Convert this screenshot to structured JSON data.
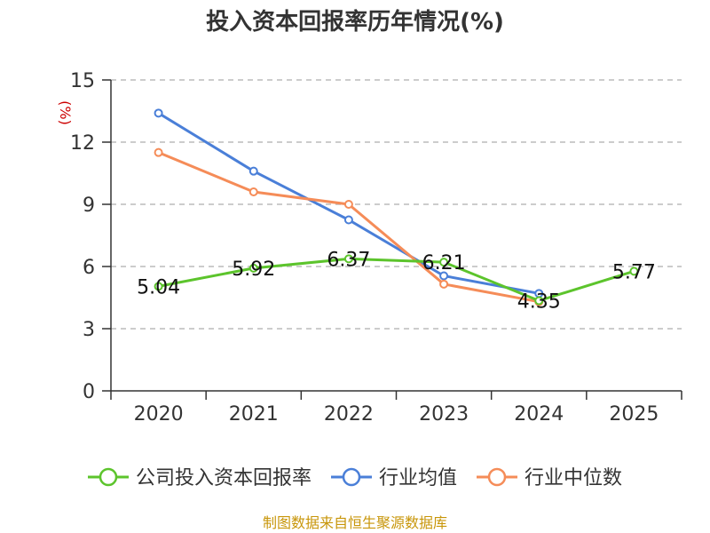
{
  "chart_data": {
    "type": "line",
    "title": "投入资本回报率历年情况(%)",
    "ylabel": "(%)",
    "xlabel": "",
    "categories": [
      "2020",
      "2021",
      "2022",
      "2023",
      "2024",
      "2025"
    ],
    "ylim": [
      0,
      15
    ],
    "yticks": [
      0,
      3,
      6,
      9,
      12,
      15
    ],
    "grid": true,
    "legend_position": "bottom",
    "series": [
      {
        "name": "公司投入资本回报率",
        "color": "#5cc42c",
        "values": [
          5.04,
          5.92,
          6.37,
          6.21,
          4.35,
          5.77
        ],
        "labels": [
          "5.04",
          "5.92",
          "6.37",
          "6.21",
          "4.35",
          "5.77"
        ]
      },
      {
        "name": "行业均值",
        "color": "#4a7fd8",
        "values": [
          13.4,
          10.6,
          8.25,
          5.55,
          4.7,
          null
        ]
      },
      {
        "name": "行业中位数",
        "color": "#f58c58",
        "values": [
          11.5,
          9.6,
          9.0,
          5.15,
          4.3,
          null
        ]
      }
    ],
    "source": "制图数据来自恒生聚源数据库"
  }
}
